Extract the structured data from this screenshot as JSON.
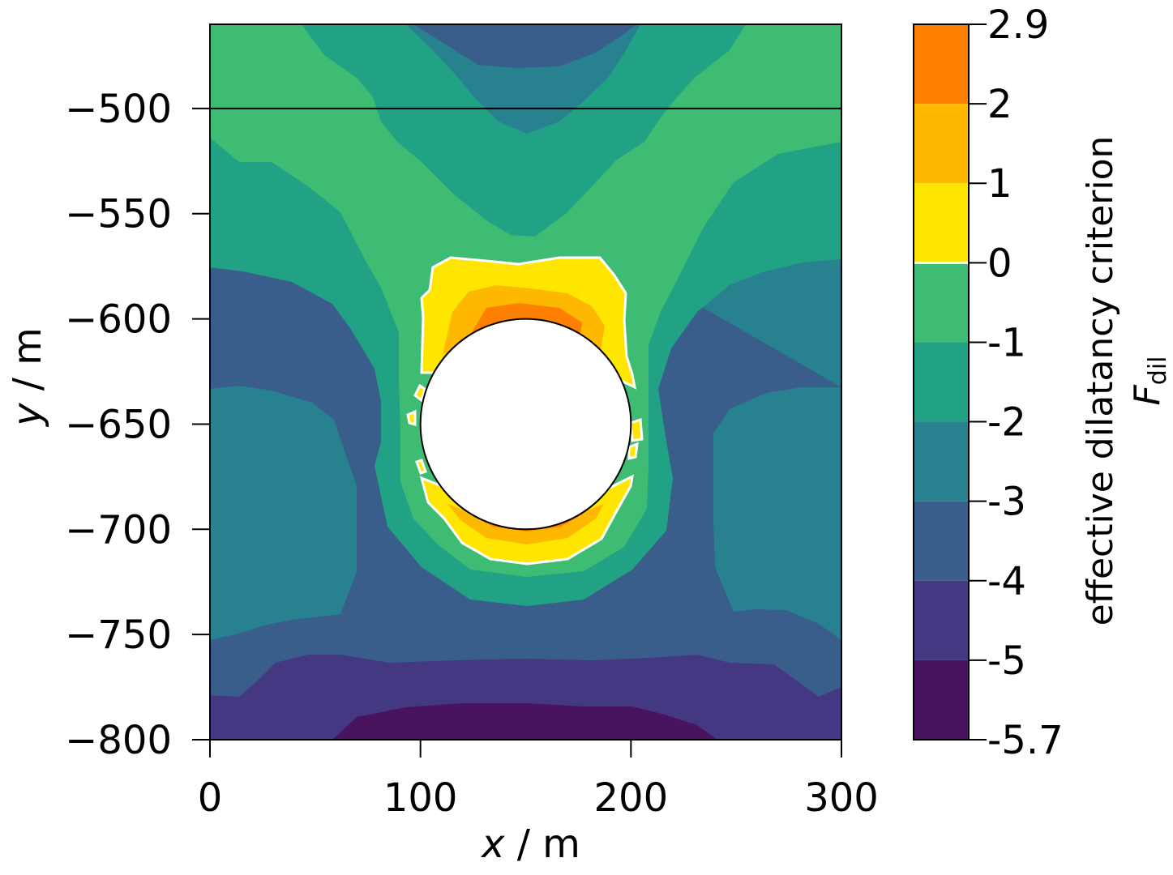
{
  "chart_data": {
    "type": "contour",
    "xlabel": {
      "symbol": "x",
      "unit": " / m"
    },
    "ylabel": {
      "symbol": "y",
      "unit": " / m"
    },
    "xlim": [
      0,
      300
    ],
    "ylim": [
      -800,
      -460
    ],
    "xticks": [
      {
        "value": 0,
        "label": "0"
      },
      {
        "value": 100,
        "label": "100"
      },
      {
        "value": 200,
        "label": "200"
      },
      {
        "value": 300,
        "label": "300"
      }
    ],
    "yticks": [
      {
        "value": -500,
        "label": "−500"
      },
      {
        "value": -550,
        "label": "−550"
      },
      {
        "value": -600,
        "label": "−600"
      },
      {
        "value": -650,
        "label": "−650"
      },
      {
        "value": -700,
        "label": "−700"
      },
      {
        "value": -750,
        "label": "−750"
      },
      {
        "value": -800,
        "label": "−800"
      }
    ],
    "reference_line_y": -500,
    "cavity": {
      "center": [
        150,
        -650
      ],
      "radius": 50
    },
    "zero_contour_color": "#ffffff",
    "colorbar": {
      "label_main": "effective dilatancy criterion",
      "label_symbol": "F",
      "label_subscript": "dil",
      "levels": [
        {
          "label": "2.9",
          "value": 2.9
        },
        {
          "label": "2",
          "value": 2
        },
        {
          "label": "1",
          "value": 1
        },
        {
          "label": "0",
          "value": 0
        },
        {
          "label": "-1",
          "value": -1
        },
        {
          "label": "-2",
          "value": -2
        },
        {
          "label": "-3",
          "value": -3
        },
        {
          "label": "-4",
          "value": -4
        },
        {
          "label": "-5",
          "value": -5
        },
        {
          "label": "-5.7",
          "value": -5.7
        }
      ],
      "bands": [
        {
          "from": 2,
          "to": 2.9,
          "color": "#ff7f00"
        },
        {
          "from": 1,
          "to": 2,
          "color": "#ffb800"
        },
        {
          "from": 0,
          "to": 1,
          "color": "#ffe600"
        },
        {
          "from": -1,
          "to": 0,
          "color": "#3fbc73"
        },
        {
          "from": -2,
          "to": -1,
          "color": "#22a284"
        },
        {
          "from": -3,
          "to": -2,
          "color": "#28818e"
        },
        {
          "from": -4,
          "to": -3,
          "color": "#3a5e8c"
        },
        {
          "from": -5,
          "to": -4,
          "color": "#453883"
        },
        {
          "from": -5.7,
          "to": -5,
          "color": "#48145f"
        }
      ]
    }
  }
}
